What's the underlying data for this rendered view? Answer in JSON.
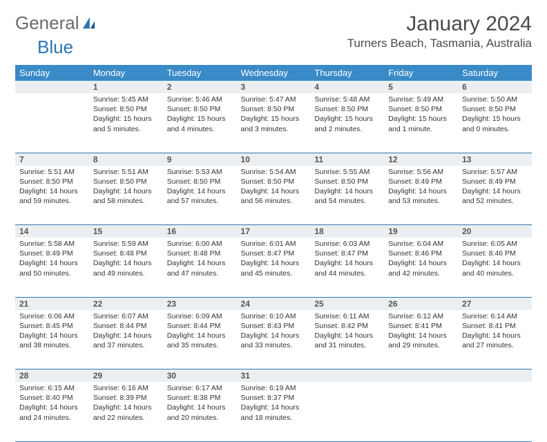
{
  "logo": {
    "word1": "General",
    "word2": "Blue"
  },
  "title": "January 2024",
  "location": "Turners Beach, Tasmania, Australia",
  "colors": {
    "header_bg": "#3a8ac7",
    "header_text": "#ffffff",
    "row_divider": "#2e75b6",
    "daynum_bg": "#eceff1",
    "page_bg": "#ffffff",
    "text": "#333333",
    "title_text": "#4a4a4a",
    "logo_gray": "#6a6a6a",
    "logo_blue": "#2e75b6"
  },
  "typography": {
    "title_fontsize": 30,
    "location_fontsize": 17,
    "dayheader_fontsize": 13,
    "daynum_fontsize": 12,
    "body_fontsize": 10.5
  },
  "day_headers": [
    "Sunday",
    "Monday",
    "Tuesday",
    "Wednesday",
    "Thursday",
    "Friday",
    "Saturday"
  ],
  "weeks": [
    {
      "nums": [
        "",
        "1",
        "2",
        "3",
        "4",
        "5",
        "6"
      ],
      "cells": [
        null,
        {
          "sunrise": "Sunrise: 5:45 AM",
          "sunset": "Sunset: 8:50 PM",
          "daylight": "Daylight: 15 hours and 5 minutes."
        },
        {
          "sunrise": "Sunrise: 5:46 AM",
          "sunset": "Sunset: 8:50 PM",
          "daylight": "Daylight: 15 hours and 4 minutes."
        },
        {
          "sunrise": "Sunrise: 5:47 AM",
          "sunset": "Sunset: 8:50 PM",
          "daylight": "Daylight: 15 hours and 3 minutes."
        },
        {
          "sunrise": "Sunrise: 5:48 AM",
          "sunset": "Sunset: 8:50 PM",
          "daylight": "Daylight: 15 hours and 2 minutes."
        },
        {
          "sunrise": "Sunrise: 5:49 AM",
          "sunset": "Sunset: 8:50 PM",
          "daylight": "Daylight: 15 hours and 1 minute."
        },
        {
          "sunrise": "Sunrise: 5:50 AM",
          "sunset": "Sunset: 8:50 PM",
          "daylight": "Daylight: 15 hours and 0 minutes."
        }
      ]
    },
    {
      "nums": [
        "7",
        "8",
        "9",
        "10",
        "11",
        "12",
        "13"
      ],
      "cells": [
        {
          "sunrise": "Sunrise: 5:51 AM",
          "sunset": "Sunset: 8:50 PM",
          "daylight": "Daylight: 14 hours and 59 minutes."
        },
        {
          "sunrise": "Sunrise: 5:51 AM",
          "sunset": "Sunset: 8:50 PM",
          "daylight": "Daylight: 14 hours and 58 minutes."
        },
        {
          "sunrise": "Sunrise: 5:53 AM",
          "sunset": "Sunset: 8:50 PM",
          "daylight": "Daylight: 14 hours and 57 minutes."
        },
        {
          "sunrise": "Sunrise: 5:54 AM",
          "sunset": "Sunset: 8:50 PM",
          "daylight": "Daylight: 14 hours and 56 minutes."
        },
        {
          "sunrise": "Sunrise: 5:55 AM",
          "sunset": "Sunset: 8:50 PM",
          "daylight": "Daylight: 14 hours and 54 minutes."
        },
        {
          "sunrise": "Sunrise: 5:56 AM",
          "sunset": "Sunset: 8:49 PM",
          "daylight": "Daylight: 14 hours and 53 minutes."
        },
        {
          "sunrise": "Sunrise: 5:57 AM",
          "sunset": "Sunset: 8:49 PM",
          "daylight": "Daylight: 14 hours and 52 minutes."
        }
      ]
    },
    {
      "nums": [
        "14",
        "15",
        "16",
        "17",
        "18",
        "19",
        "20"
      ],
      "cells": [
        {
          "sunrise": "Sunrise: 5:58 AM",
          "sunset": "Sunset: 8:49 PM",
          "daylight": "Daylight: 14 hours and 50 minutes."
        },
        {
          "sunrise": "Sunrise: 5:59 AM",
          "sunset": "Sunset: 8:48 PM",
          "daylight": "Daylight: 14 hours and 49 minutes."
        },
        {
          "sunrise": "Sunrise: 6:00 AM",
          "sunset": "Sunset: 8:48 PM",
          "daylight": "Daylight: 14 hours and 47 minutes."
        },
        {
          "sunrise": "Sunrise: 6:01 AM",
          "sunset": "Sunset: 8:47 PM",
          "daylight": "Daylight: 14 hours and 45 minutes."
        },
        {
          "sunrise": "Sunrise: 6:03 AM",
          "sunset": "Sunset: 8:47 PM",
          "daylight": "Daylight: 14 hours and 44 minutes."
        },
        {
          "sunrise": "Sunrise: 6:04 AM",
          "sunset": "Sunset: 8:46 PM",
          "daylight": "Daylight: 14 hours and 42 minutes."
        },
        {
          "sunrise": "Sunrise: 6:05 AM",
          "sunset": "Sunset: 8:46 PM",
          "daylight": "Daylight: 14 hours and 40 minutes."
        }
      ]
    },
    {
      "nums": [
        "21",
        "22",
        "23",
        "24",
        "25",
        "26",
        "27"
      ],
      "cells": [
        {
          "sunrise": "Sunrise: 6:06 AM",
          "sunset": "Sunset: 8:45 PM",
          "daylight": "Daylight: 14 hours and 38 minutes."
        },
        {
          "sunrise": "Sunrise: 6:07 AM",
          "sunset": "Sunset: 8:44 PM",
          "daylight": "Daylight: 14 hours and 37 minutes."
        },
        {
          "sunrise": "Sunrise: 6:09 AM",
          "sunset": "Sunset: 8:44 PM",
          "daylight": "Daylight: 14 hours and 35 minutes."
        },
        {
          "sunrise": "Sunrise: 6:10 AM",
          "sunset": "Sunset: 8:43 PM",
          "daylight": "Daylight: 14 hours and 33 minutes."
        },
        {
          "sunrise": "Sunrise: 6:11 AM",
          "sunset": "Sunset: 8:42 PM",
          "daylight": "Daylight: 14 hours and 31 minutes."
        },
        {
          "sunrise": "Sunrise: 6:12 AM",
          "sunset": "Sunset: 8:41 PM",
          "daylight": "Daylight: 14 hours and 29 minutes."
        },
        {
          "sunrise": "Sunrise: 6:14 AM",
          "sunset": "Sunset: 8:41 PM",
          "daylight": "Daylight: 14 hours and 27 minutes."
        }
      ]
    },
    {
      "nums": [
        "28",
        "29",
        "30",
        "31",
        "",
        "",
        ""
      ],
      "cells": [
        {
          "sunrise": "Sunrise: 6:15 AM",
          "sunset": "Sunset: 8:40 PM",
          "daylight": "Daylight: 14 hours and 24 minutes."
        },
        {
          "sunrise": "Sunrise: 6:16 AM",
          "sunset": "Sunset: 8:39 PM",
          "daylight": "Daylight: 14 hours and 22 minutes."
        },
        {
          "sunrise": "Sunrise: 6:17 AM",
          "sunset": "Sunset: 8:38 PM",
          "daylight": "Daylight: 14 hours and 20 minutes."
        },
        {
          "sunrise": "Sunrise: 6:19 AM",
          "sunset": "Sunset: 8:37 PM",
          "daylight": "Daylight: 14 hours and 18 minutes."
        },
        null,
        null,
        null
      ]
    }
  ]
}
